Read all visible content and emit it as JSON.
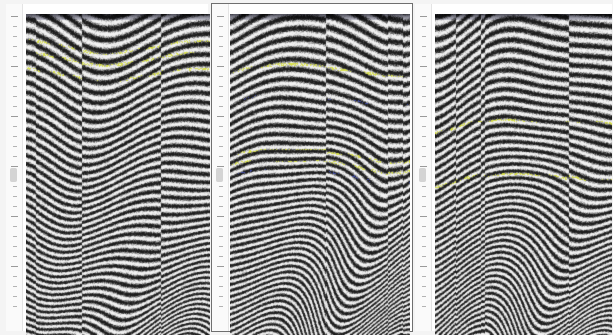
{
  "viewer": {
    "panel_count": 3,
    "selected_panel": 1,
    "panels": [
      {
        "id": "left",
        "name": "seismic-panel-left"
      },
      {
        "id": "middle",
        "name": "seismic-panel-middle"
      },
      {
        "id": "right",
        "name": "seismic-panel-right"
      }
    ]
  },
  "colors": {
    "frame_background": "#f4f4f4",
    "panel_background": "#ffffff",
    "seismic_light": "#f2f2f2",
    "seismic_dark": "#1c1c1c",
    "highlight_yellow": "#d8e04a",
    "highlight_blue": "#3e4aa8",
    "selection_outline": "#6f6f6f"
  }
}
